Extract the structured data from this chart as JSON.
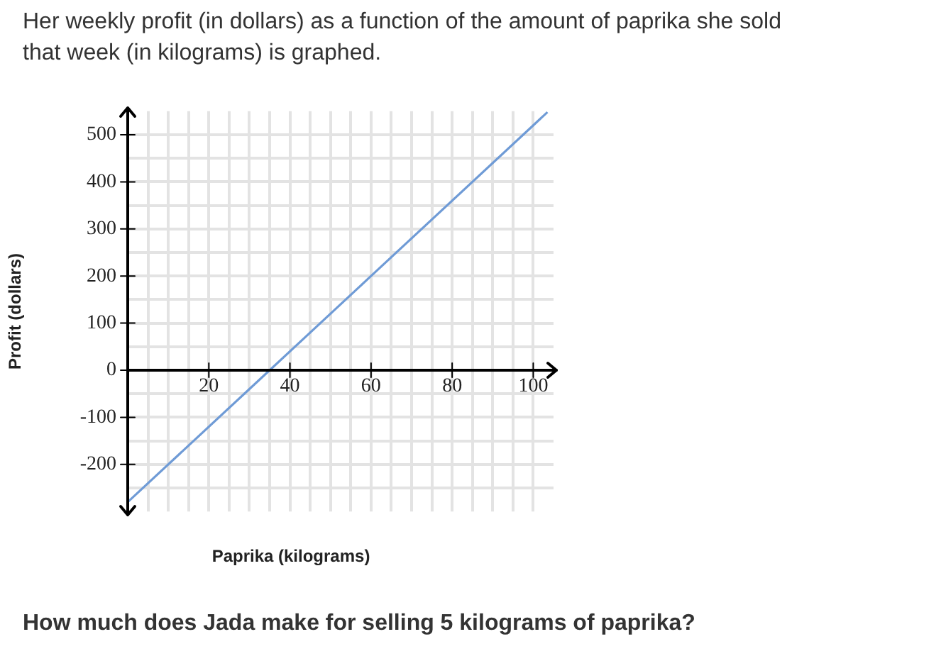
{
  "chart_data": {
    "type": "line",
    "title": "Her weekly profit (in dollars) as a function of the amount of paprika she sold that week (in kilograms) is graphed.",
    "xlabel": "Paprika (kilograms)",
    "ylabel": "Profit (dollars)",
    "annotations": [
      "How much does Jada make for selling 5 kilograms of paprika?"
    ],
    "series": [
      {
        "color": "#6f9bd6",
        "x": [
          0,
          35,
          60,
          100,
          103.5
        ],
        "values": [
          -280,
          0,
          200,
          520,
          548
        ]
      }
    ],
    "xlim": [
      0,
      105
    ],
    "ylim": [
      -300,
      550
    ],
    "xticks": [
      {
        "value": 5,
        "label": null
      },
      {
        "value": 10,
        "label": null
      },
      {
        "value": 15,
        "label": null
      },
      20,
      {
        "value": 25,
        "label": null
      },
      {
        "value": 30,
        "label": null
      },
      {
        "value": 35,
        "label": null
      },
      40,
      {
        "value": 45,
        "label": null
      },
      {
        "value": 50,
        "label": null
      },
      {
        "value": 55,
        "label": null
      },
      60,
      {
        "value": 65,
        "label": null
      },
      {
        "value": 70,
        "label": null
      },
      {
        "value": 75,
        "label": null
      },
      80,
      {
        "value": 85,
        "label": null
      },
      {
        "value": 90,
        "label": null
      },
      {
        "value": 95,
        "label": null
      },
      100
    ],
    "yticks": [
      {
        "value": -250,
        "label": null
      },
      -200,
      {
        "value": -150,
        "label": null
      },
      -100,
      {
        "value": -50,
        "label": null
      },
      0,
      {
        "value": 50,
        "label": null
      },
      100,
      {
        "value": 150,
        "label": null
      },
      200,
      {
        "value": 250,
        "label": null
      },
      300,
      {
        "value": 350,
        "label": null
      },
      400,
      {
        "value": 450,
        "label": null
      },
      500
    ],
    "grid": true,
    "marker": "none",
    "line_style": "solid"
  }
}
